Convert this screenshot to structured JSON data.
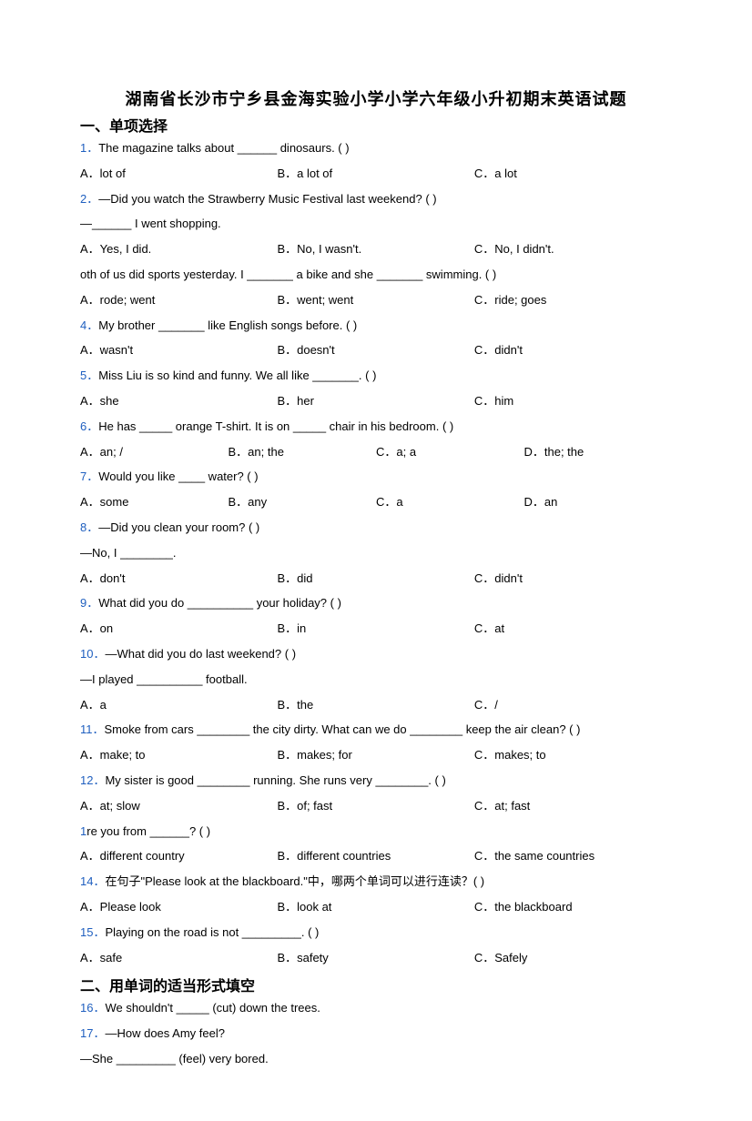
{
  "title": "湖南省长沙市宁乡县金海实验小学小学六年级小升初期末英语试题",
  "section1_title": "一、单项选择",
  "section2_title": "二、用单词的适当形式填空",
  "questions": [
    {
      "num": "1．",
      "text": "The magazine talks about ______ dinosaurs. (   )",
      "a": "A．lot of",
      "b": "B．a lot of",
      "c": "C．a lot"
    },
    {
      "num": "2．",
      "text": "—Did you watch the Strawberry Music Festival last weekend? (   )",
      "follow": "—______ I went shopping.",
      "a": "A．Yes, I did.",
      "b": "B．No, I wasn't.",
      "c": "C．No, I didn't."
    },
    {
      "num": "",
      "text": "oth of us did sports yesterday. I _______ a bike and she _______ swimming. (   )",
      "a": "A．rode; went",
      "b": "B．went; went",
      "c": "C．ride; goes"
    },
    {
      "num": "4．",
      "text": "My brother _______ like English songs before. (   )",
      "a": "A．wasn't",
      "b": "B．doesn't",
      "c": "C．didn't"
    },
    {
      "num": "5．",
      "text": "Miss Liu is so kind and funny. We all like _______. (   )",
      "a": "A．she",
      "b": "B．her",
      "c": "C．him"
    },
    {
      "num": "6．",
      "text": "He has _____ orange T-shirt. It is on _____ chair in his bedroom. (   )",
      "a": "A．an; /",
      "b": "B．an; the",
      "c": "C．a; a",
      "d": "D．the; the"
    },
    {
      "num": "7．",
      "text": "Would you like ____ water? (   )",
      "a": "A．some",
      "b": "B．any",
      "c": "C．a",
      "d": "D．an"
    },
    {
      "num": "8．",
      "text": "—Did you clean your room? (   )",
      "follow": "—No, I ________.",
      "a": "A．don't",
      "b": "B．did",
      "c": "C．didn't"
    },
    {
      "num": "9．",
      "text": "What did you do __________ your holiday? (   )",
      "a": "A．on",
      "b": "B．in",
      "c": "C．at"
    },
    {
      "num": "10．",
      "text": "—What did you do last weekend? (   )",
      "follow": "—I played __________ football.",
      "a": "A．a",
      "b": "B．the",
      "c": "C．/"
    },
    {
      "num": "11．",
      "text": "Smoke from cars ________ the city dirty. What can we do ________ keep the air clean? (   )",
      "a": "A．make; to",
      "b": "B．makes; for",
      "c": "C．makes; to"
    },
    {
      "num": "12．",
      "text": "My sister is good ________ running. She runs very ________. (   )",
      "a": "A．at; slow",
      "b": "B．of; fast",
      "c": "C．at; fast"
    },
    {
      "num": "1",
      "text": "re you from ______? (   )",
      "a": "A．different country",
      "b": "B．different countries",
      "c": "C．the same countries"
    },
    {
      "num": "14．",
      "text": "在句子\"Please look at the blackboard.\"中，哪两个单词可以进行连读？(   )",
      "a": "A．Please look",
      "b": "B．look at",
      "c": "C．the blackboard"
    },
    {
      "num": "15．",
      "text": "Playing on the road is not _________. (   )",
      "a": "A．safe",
      "b": "B．safety",
      "c": "C．Safely"
    }
  ],
  "fill_questions": [
    {
      "num": "16．",
      "text": "We shouldn't _____ (cut) down the trees."
    },
    {
      "num": "17．",
      "text": "—How does Amy feel?",
      "follow": "—She _________ (feel) very bored."
    }
  ]
}
